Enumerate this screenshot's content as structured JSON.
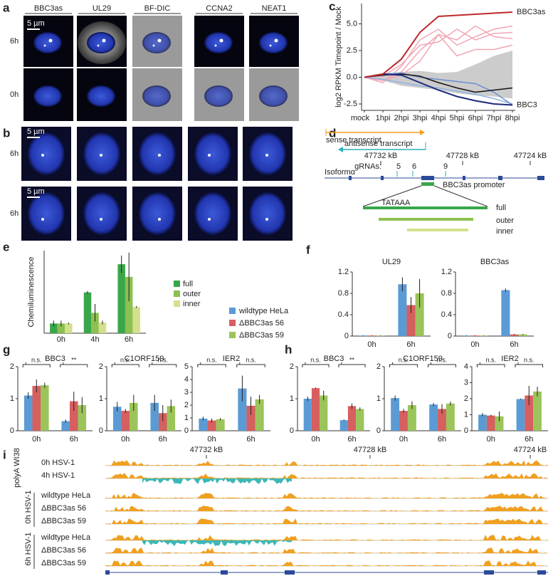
{
  "panel_labels": [
    "a",
    "b",
    "c",
    "d",
    "e",
    "f",
    "g",
    "h",
    "i"
  ],
  "panel_a": {
    "column_labels": [
      "BBC3as",
      "UL29",
      "BF-DIC",
      "CCNA2",
      "NEAT1"
    ],
    "row_labels": [
      "6h",
      "0h"
    ],
    "scale_bar": "5 µm"
  },
  "panel_b": {
    "row_labels": [
      "6h",
      "6h"
    ],
    "scale_bars": [
      "5 µm",
      "5 µm"
    ]
  },
  "panel_d": {
    "sense": "sense transcript",
    "antisense": "antisense transcript",
    "coordinates": [
      "47732 kB",
      "47728 kB",
      "47724 kB"
    ],
    "grnas_label": "gRNAs:",
    "grnas": [
      "5",
      "6",
      "9"
    ],
    "isoform": "Isoformα",
    "promoter": "BBC3as promoter",
    "tataaa": "TATAAA",
    "constructs": [
      "full",
      "outer",
      "inner"
    ]
  },
  "panel_i": {
    "coordinates": [
      "47732 kB",
      "47728 kB",
      "47724 kB"
    ],
    "groups": [
      {
        "label": "polyA WI38",
        "tracks": [
          "0h HSV-1",
          "4h HSV-1"
        ]
      },
      {
        "label": "0h HSV-1",
        "tracks": [
          "wildtype HeLa",
          "ΔBBC3as 56",
          "ΔBBC3as 59"
        ]
      },
      {
        "label": "6h HSV-1",
        "tracks": [
          "wildtype HeLa",
          "ΔBBC3as 56",
          "ΔBBC3as 59"
        ]
      }
    ]
  },
  "chart_data": [
    {
      "type": "line",
      "y_label": "log2 RPKM Timepoint / Mock",
      "categories": [
        "mock",
        "1hpi",
        "2hpi",
        "3hpi",
        "4hpi",
        "5hpi",
        "6hpi",
        "7hpi",
        "8hpi"
      ],
      "ylim": [
        -3.1,
        6.9
      ],
      "yticks": [
        {
          "value": -2.5,
          "label": "-2.5"
        },
        {
          "value": 0,
          "label": "0.0"
        },
        {
          "value": 2.5,
          "label": "2.5"
        },
        {
          "value": 5,
          "label": "5.0"
        }
      ],
      "band": {
        "color": "#cccccc",
        "lower": [
          0,
          -0.3,
          -0.8,
          -1.0,
          -1.2,
          -1.5,
          -1.7,
          -1.8,
          -2.0
        ],
        "upper": [
          0,
          0.2,
          0.5,
          0.6,
          0.4,
          0.5,
          1.2,
          2.0,
          2.5
        ]
      },
      "series": [
        {
          "color": "#f2a7b5",
          "values": [
            0,
            -0.5,
            1.0,
            3.5,
            4.5,
            3.0,
            3.8,
            4.5,
            4.8
          ]
        },
        {
          "color": "#f2a7b5",
          "values": [
            0,
            -0.3,
            0.5,
            2.5,
            4.0,
            3.5,
            4.8,
            3.8,
            3.6
          ]
        },
        {
          "color": "#f2a7b5",
          "values": [
            0,
            -0.3,
            0.2,
            1.5,
            4.0,
            2.0,
            2.6,
            2.6,
            3.0
          ]
        },
        {
          "color": "#f2a7b5",
          "values": [
            0,
            0.1,
            1.2,
            3.0,
            3.3,
            4.5,
            3.5,
            4.1,
            4.2
          ]
        },
        {
          "color": "#8fb4e0",
          "values": [
            0,
            -0.2,
            -0.5,
            -0.8,
            -1.0,
            -1.3,
            -1.6,
            -2.0,
            -2.5
          ]
        },
        {
          "color": "#6a8fcf",
          "values": [
            0,
            0.3,
            0.4,
            0,
            -0.2,
            -0.4,
            -0.6,
            -1.4,
            -2.6
          ]
        },
        {
          "color": "#111111",
          "values": [
            0,
            0.2,
            0.3,
            0.1,
            -0.5,
            -1.0,
            -1.4,
            -1.2,
            -1.0
          ]
        },
        {
          "name": "BBC3",
          "color": "#1d2a7a",
          "values": [
            0,
            0.3,
            0.2,
            -0.5,
            -1.2,
            -1.8,
            -2.2,
            -2.5,
            -2.6
          ]
        },
        {
          "name": "BBC3as",
          "color": "#c0282a",
          "values": [
            0,
            0.3,
            1.7,
            4.2,
            5.7,
            5.8,
            5.9,
            6.0,
            6.1
          ]
        }
      ]
    },
    {
      "type": "bar",
      "y_label": "Chemiluminescence",
      "categories": [
        "0h",
        "4h",
        "6h"
      ],
      "ylim": [
        0,
        8.5
      ],
      "series": [
        {
          "name": "full",
          "color": "#3aa64a",
          "values": [
            1,
            4.2,
            7.1
          ],
          "errors": [
            0.3,
            0.15,
            0.9
          ]
        },
        {
          "name": "outer",
          "color": "#8cc050",
          "values": [
            1,
            2.1,
            5.8
          ],
          "errors": [
            0.3,
            0.9,
            2.5
          ]
        },
        {
          "name": "inner",
          "color": "#d4e08c",
          "values": [
            1,
            1.1,
            2.7
          ],
          "errors": [
            0.1,
            0.2,
            0.1
          ]
        }
      ]
    },
    {
      "type": "bar",
      "title": "UL29",
      "categories": [
        "0h",
        "6h"
      ],
      "ylim": [
        0,
        1.2
      ],
      "yticks": [
        0,
        0.4,
        0.8,
        1.2
      ],
      "series": [
        {
          "name": "wildtype HeLa",
          "color": "#5b9bd5",
          "values": [
            0.01,
            0.97
          ],
          "errors": [
            0.005,
            0.13
          ]
        },
        {
          "name": "ΔBBC3as 56",
          "color": "#d65f5f",
          "values": [
            0.01,
            0.58
          ],
          "errors": [
            0.005,
            0.15
          ]
        },
        {
          "name": "ΔBBC3as 59",
          "color": "#9bc45a",
          "values": [
            0.01,
            0.8
          ],
          "errors": [
            0.005,
            0.27
          ]
        }
      ]
    },
    {
      "type": "bar",
      "title": "BBC3as",
      "categories": [
        "0h",
        "6h"
      ],
      "ylim": [
        0,
        1.2
      ],
      "yticks": [
        0,
        0.4,
        0.8,
        1.2
      ],
      "series": [
        {
          "color": "#5b9bd5",
          "values": [
            0.01,
            0.86
          ],
          "errors": [
            0.005,
            0.03
          ]
        },
        {
          "color": "#d65f5f",
          "values": [
            0.01,
            0.03
          ],
          "errors": [
            0.005,
            0.01
          ]
        },
        {
          "color": "#9bc45a",
          "values": [
            0.01,
            0.03
          ],
          "errors": [
            0.005,
            0.01
          ]
        }
      ]
    },
    {
      "type": "bar",
      "title": "BBC3",
      "categories": [
        "0h",
        "6h"
      ],
      "ylim": [
        0,
        2
      ],
      "yticks": [
        0,
        1,
        2
      ],
      "annotations": [
        "n.s.",
        "**"
      ],
      "series": [
        {
          "color": "#5b9bd5",
          "values": [
            1.1,
            0.3
          ],
          "errors": [
            0.1,
            0.05
          ]
        },
        {
          "color": "#d65f5f",
          "values": [
            1.4,
            0.92
          ],
          "errors": [
            0.2,
            0.3
          ]
        },
        {
          "color": "#9bc45a",
          "values": [
            1.42,
            0.8
          ],
          "errors": [
            0.08,
            0.25
          ]
        }
      ]
    },
    {
      "type": "bar",
      "title": "C1ORF159",
      "categories": [
        "0h",
        "6h"
      ],
      "ylim": [
        0,
        2
      ],
      "yticks": [
        0,
        1,
        2
      ],
      "annotations": [
        "n.s.",
        "n.s."
      ],
      "series": [
        {
          "color": "#5b9bd5",
          "values": [
            0.75,
            0.87
          ],
          "errors": [
            0.15,
            0.25
          ]
        },
        {
          "color": "#d65f5f",
          "values": [
            0.62,
            0.55
          ],
          "errors": [
            0.06,
            0.25
          ]
        },
        {
          "color": "#9bc45a",
          "values": [
            0.87,
            0.77
          ],
          "errors": [
            0.25,
            0.2
          ]
        }
      ]
    },
    {
      "type": "bar",
      "title": "IER2",
      "categories": [
        "0h",
        "6h"
      ],
      "ylim": [
        0,
        5
      ],
      "yticks": [
        0,
        1,
        2,
        3,
        4,
        5
      ],
      "annotations": [
        "n.s.",
        "n.s."
      ],
      "series": [
        {
          "color": "#5b9bd5",
          "values": [
            0.95,
            3.3
          ],
          "errors": [
            0.15,
            1.0
          ]
        },
        {
          "color": "#d65f5f",
          "values": [
            0.8,
            1.95
          ],
          "errors": [
            0.15,
            0.7
          ]
        },
        {
          "color": "#9bc45a",
          "values": [
            0.9,
            2.45
          ],
          "errors": [
            0.1,
            0.35
          ]
        }
      ]
    },
    {
      "type": "bar",
      "title": "BBC3",
      "categories": [
        "0h",
        "6h"
      ],
      "ylim": [
        0,
        2
      ],
      "yticks": [
        0,
        1,
        2
      ],
      "annotations": [
        "n.s.",
        "**"
      ],
      "series": [
        {
          "color": "#5b9bd5",
          "values": [
            1.0,
            0.33
          ],
          "errors": [
            0.07,
            0.02
          ]
        },
        {
          "color": "#d65f5f",
          "values": [
            1.33,
            0.77
          ],
          "errors": [
            0.02,
            0.08
          ]
        },
        {
          "color": "#9bc45a",
          "values": [
            1.1,
            0.68
          ],
          "errors": [
            0.15,
            0.05
          ]
        }
      ]
    },
    {
      "type": "bar",
      "title": "C1ORF159",
      "categories": [
        "0h",
        "6h"
      ],
      "ylim": [
        0,
        2
      ],
      "yticks": [
        0,
        1,
        2
      ],
      "annotations": [
        "n.s.",
        "n.s."
      ],
      "series": [
        {
          "color": "#5b9bd5",
          "values": [
            1.02,
            0.82
          ],
          "errors": [
            0.08,
            0.05
          ]
        },
        {
          "color": "#d65f5f",
          "values": [
            0.62,
            0.68
          ],
          "errors": [
            0.06,
            0.15
          ]
        },
        {
          "color": "#9bc45a",
          "values": [
            0.8,
            0.85
          ],
          "errors": [
            0.12,
            0.06
          ]
        }
      ]
    },
    {
      "type": "bar",
      "title": "IER2",
      "categories": [
        "0h",
        "6h"
      ],
      "ylim": [
        0,
        4
      ],
      "yticks": [
        0,
        1,
        2,
        3,
        4
      ],
      "annotations": [
        "n.s.",
        "n.s."
      ],
      "series": [
        {
          "color": "#5b9bd5",
          "values": [
            1.0,
            1.98
          ],
          "errors": [
            0.1,
            0.03
          ]
        },
        {
          "color": "#d65f5f",
          "values": [
            0.95,
            2.2
          ],
          "errors": [
            0.05,
            0.6
          ]
        },
        {
          "color": "#9bc45a",
          "values": [
            0.9,
            2.45
          ],
          "errors": [
            0.3,
            0.3
          ]
        }
      ]
    }
  ]
}
